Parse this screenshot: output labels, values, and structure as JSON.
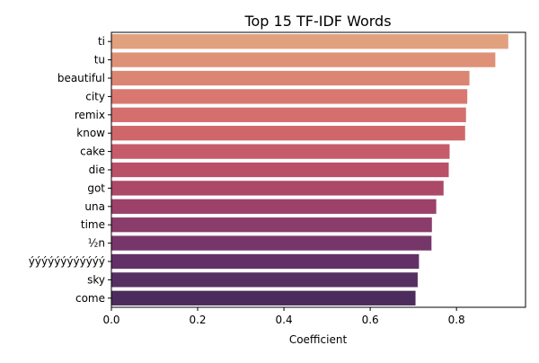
{
  "chart_data": {
    "type": "bar",
    "orientation": "horizontal",
    "title": "Top 15 TF-IDF Words",
    "xlabel": "Coefficient",
    "ylabel": "",
    "xlim": [
      0,
      0.96
    ],
    "xticks": [
      "0.0",
      "0.2",
      "0.4",
      "0.6",
      "0.8"
    ],
    "xtick_values": [
      0.0,
      0.2,
      0.4,
      0.6,
      0.8
    ],
    "grid": false,
    "categories": [
      "ti",
      "tu",
      "beautiful",
      "city",
      "remix",
      "know",
      "cake",
      "die",
      "got",
      "una",
      "time",
      "½n",
      "ýýýýýýýýýýýý",
      "sky",
      "come"
    ],
    "values": [
      0.92,
      0.89,
      0.83,
      0.825,
      0.822,
      0.82,
      0.784,
      0.782,
      0.77,
      0.753,
      0.743,
      0.742,
      0.713,
      0.71,
      0.705
    ],
    "colors": [
      "#e1a17e",
      "#df9177",
      "#db8673",
      "#d87870",
      "#d46f6d",
      "#cf676a",
      "#c65b69",
      "#ba5068",
      "#ac4868",
      "#9b416a",
      "#8a3c6b",
      "#773669",
      "#633167",
      "#563063",
      "#4b2c5d"
    ]
  }
}
